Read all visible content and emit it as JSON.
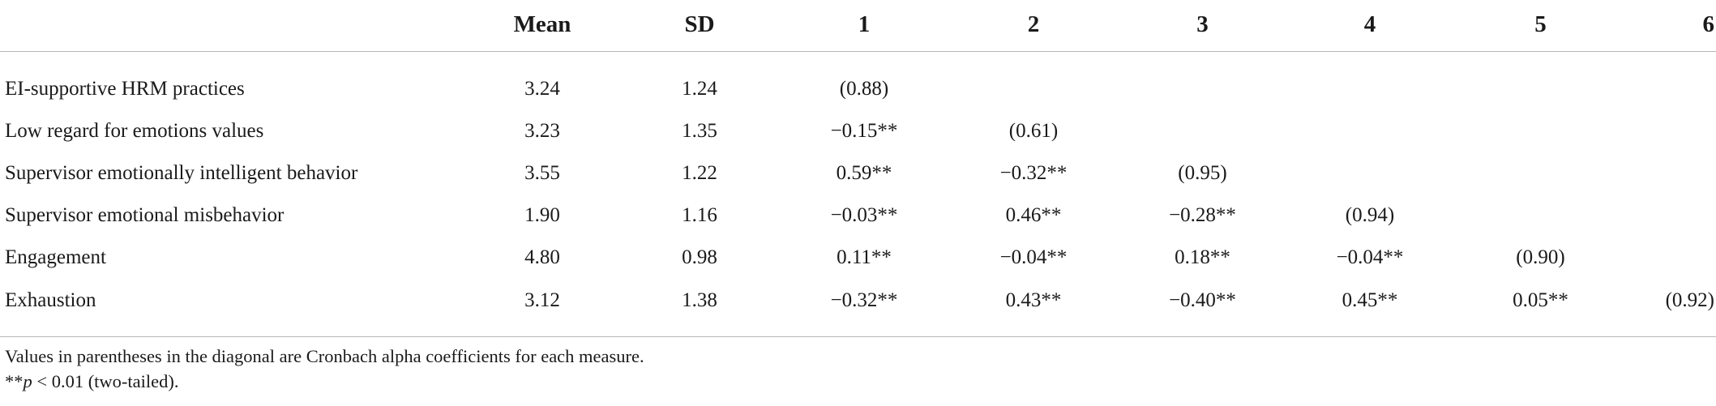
{
  "table": {
    "columns": [
      "",
      "Mean",
      "SD",
      "1",
      "2",
      "3",
      "4",
      "5",
      "6"
    ],
    "rows": [
      {
        "label": "EI-supportive HRM practices",
        "mean": "3.24",
        "sd": "1.24",
        "c1": "(0.88)",
        "c2": "",
        "c3": "",
        "c4": "",
        "c5": "",
        "c6": ""
      },
      {
        "label": "Low regard for emotions values",
        "mean": "3.23",
        "sd": "1.35",
        "c1": "−0.15**",
        "c2": "(0.61)",
        "c3": "",
        "c4": "",
        "c5": "",
        "c6": ""
      },
      {
        "label": "Supervisor emotionally intelligent behavior",
        "mean": "3.55",
        "sd": "1.22",
        "c1": "0.59**",
        "c2": "−0.32**",
        "c3": "(0.95)",
        "c4": "",
        "c5": "",
        "c6": ""
      },
      {
        "label": "Supervisor emotional misbehavior",
        "mean": "1.90",
        "sd": "1.16",
        "c1": "−0.03**",
        "c2": "0.46**",
        "c3": "−0.28**",
        "c4": "(0.94)",
        "c5": "",
        "c6": ""
      },
      {
        "label": "Engagement",
        "mean": "4.80",
        "sd": "0.98",
        "c1": "0.11**",
        "c2": "−0.04**",
        "c3": "0.18**",
        "c4": "−0.04**",
        "c5": "(0.90)",
        "c6": ""
      },
      {
        "label": "Exhaustion",
        "mean": "3.12",
        "sd": "1.38",
        "c1": "−0.32**",
        "c2": "0.43**",
        "c3": "−0.40**",
        "c4": "0.45**",
        "c5": "0.05**",
        "c6": "(0.92)"
      }
    ]
  },
  "notes": {
    "line1": "Values in parentheses in the diagonal are Cronbach alpha coefficients for each measure.",
    "line2_prefix": "**",
    "line2_p": "p",
    "line2_rest": " < 0.01 (two-tailed)."
  }
}
